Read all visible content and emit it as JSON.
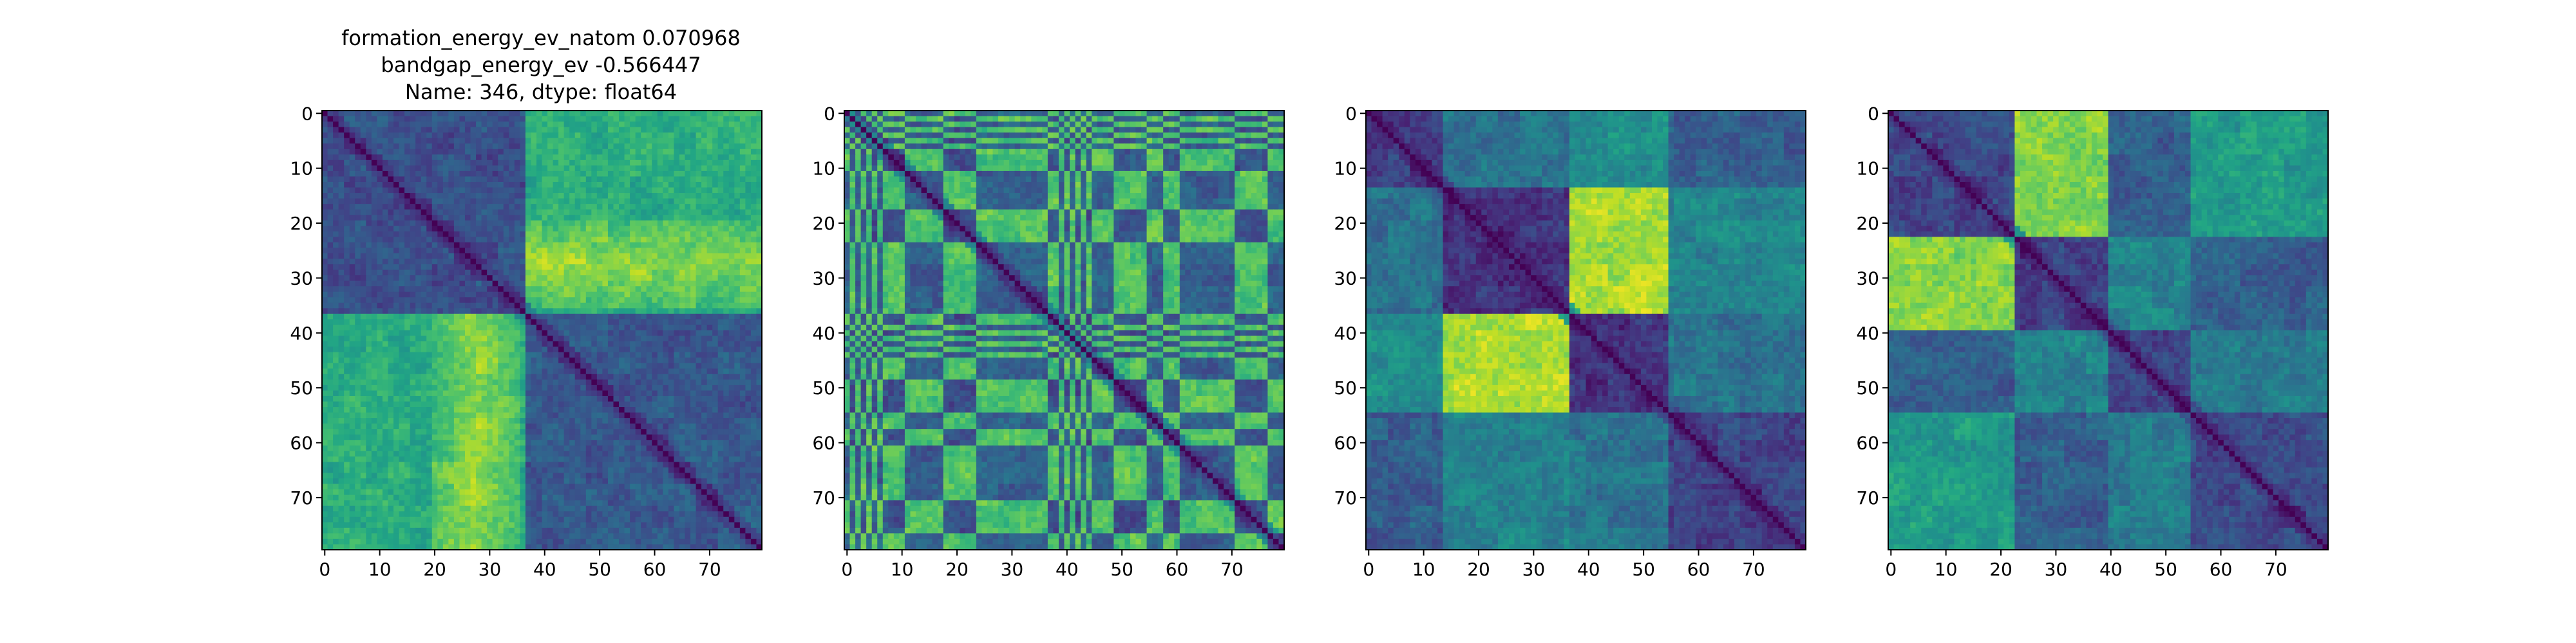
{
  "figure": {
    "title_lines": [
      "formation_energy_ev_natom    0.070968",
      "bandgap_energy_ev           -0.566447",
      "Name: 346, dtype: float64"
    ]
  },
  "chart_data": [
    {
      "type": "heatmap",
      "title": "",
      "xlabel": "",
      "ylabel": "",
      "size": 80,
      "xlim": [
        0,
        79
      ],
      "ylim": [
        79,
        0
      ],
      "xticks": [
        0,
        10,
        20,
        30,
        40,
        50,
        60,
        70
      ],
      "yticks": [
        0,
        10,
        20,
        30,
        40,
        50,
        60,
        70
      ],
      "colormap": "viridis",
      "grid": false,
      "block_boundaries": [
        0,
        37,
        80
      ],
      "block_levels": [
        [
          0.25,
          0.62
        ],
        [
          0.62,
          0.28
        ]
      ],
      "hot_spot": {
        "rows": [
          20,
          35
        ],
        "cols": [
          20,
          35
        ],
        "level": 0.9
      }
    },
    {
      "type": "heatmap",
      "title": "",
      "xlabel": "",
      "ylabel": "",
      "size": 80,
      "xlim": [
        0,
        79
      ],
      "ylim": [
        79,
        0
      ],
      "xticks": [
        0,
        10,
        20,
        30,
        40,
        50,
        60,
        70
      ],
      "yticks": [
        0,
        10,
        20,
        30,
        40,
        50,
        60,
        70
      ],
      "colormap": "viridis",
      "grid": false,
      "stripe_groups": [
        0,
        1,
        0,
        1,
        0,
        1,
        0,
        1,
        1,
        1,
        1,
        0,
        0,
        0,
        0,
        0,
        0,
        0,
        1,
        1,
        1,
        1,
        1,
        1,
        0,
        0,
        0,
        0,
        0,
        0,
        0,
        0,
        0,
        0,
        0,
        0,
        0,
        1,
        1,
        0,
        1,
        0,
        1,
        0,
        1,
        0,
        0,
        0,
        0,
        1,
        1,
        1,
        1,
        1,
        1,
        0,
        0,
        0,
        1,
        1,
        1,
        0,
        0,
        0,
        0,
        0,
        0,
        0,
        0,
        0,
        0,
        1,
        1,
        1,
        1,
        1,
        1,
        0,
        0,
        0
      ],
      "block_levels": [
        [
          0.3,
          0.72
        ],
        [
          0.72,
          0.25
        ]
      ]
    },
    {
      "type": "heatmap",
      "title": "",
      "xlabel": "",
      "ylabel": "",
      "size": 80,
      "xlim": [
        0,
        79
      ],
      "ylim": [
        79,
        0
      ],
      "xticks": [
        0,
        10,
        20,
        30,
        40,
        50,
        60,
        70
      ],
      "yticks": [
        0,
        10,
        20,
        30,
        40,
        50,
        60,
        70
      ],
      "colormap": "viridis",
      "grid": false,
      "block_boundaries": [
        0,
        14,
        37,
        55,
        80
      ],
      "block_levels": [
        [
          0.18,
          0.38,
          0.5,
          0.3
        ],
        [
          0.38,
          0.15,
          0.88,
          0.45
        ],
        [
          0.5,
          0.88,
          0.15,
          0.38
        ],
        [
          0.3,
          0.45,
          0.38,
          0.2
        ]
      ]
    },
    {
      "type": "heatmap",
      "title": "",
      "xlabel": "",
      "ylabel": "",
      "size": 80,
      "xlim": [
        0,
        79
      ],
      "ylim": [
        79,
        0
      ],
      "xticks": [
        0,
        10,
        20,
        30,
        40,
        50,
        60,
        70
      ],
      "yticks": [
        0,
        10,
        20,
        30,
        40,
        50,
        60,
        70
      ],
      "colormap": "viridis",
      "grid": false,
      "block_boundaries": [
        0,
        23,
        40,
        55,
        80
      ],
      "block_levels": [
        [
          0.22,
          0.82,
          0.3,
          0.55
        ],
        [
          0.82,
          0.2,
          0.45,
          0.3
        ],
        [
          0.3,
          0.45,
          0.2,
          0.42
        ],
        [
          0.55,
          0.3,
          0.42,
          0.22
        ]
      ]
    }
  ]
}
